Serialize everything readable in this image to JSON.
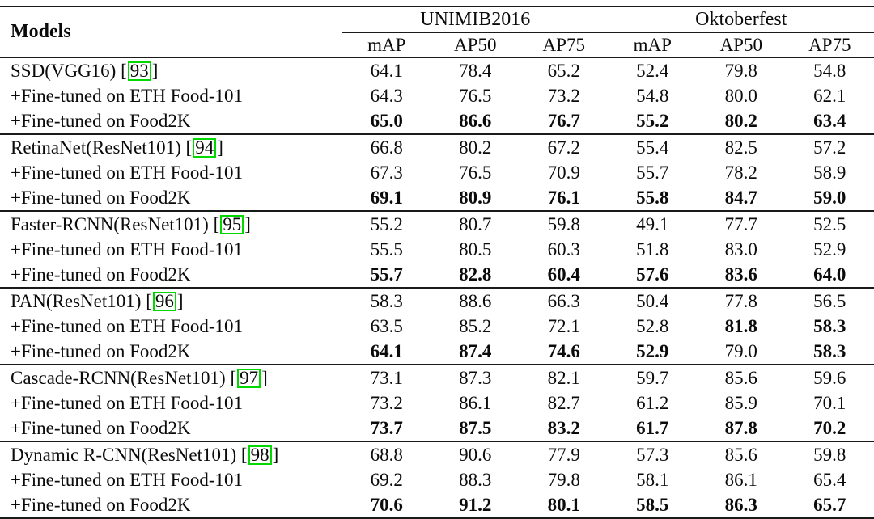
{
  "table": {
    "header": {
      "models": "Models",
      "groups": [
        {
          "label": "UNIMIB2016",
          "metrics": [
            "mAP",
            "AP50",
            "AP75"
          ]
        },
        {
          "label": "Oktoberfest",
          "metrics": [
            "mAP",
            "AP50",
            "AP75"
          ]
        }
      ]
    },
    "link_box_color": "#00d800",
    "sections": [
      {
        "rows": [
          {
            "model": "SSD(VGG16)",
            "cite": "93",
            "values": [
              "64.1",
              "78.4",
              "65.2",
              "52.4",
              "79.8",
              "54.8"
            ],
            "bold": [
              0,
              0,
              0,
              0,
              0,
              0
            ]
          },
          {
            "model": "+Fine-tuned on ETH Food-101",
            "cite": null,
            "values": [
              "64.3",
              "76.5",
              "73.2",
              "54.8",
              "80.0",
              "62.1"
            ],
            "bold": [
              0,
              0,
              0,
              0,
              0,
              0
            ]
          },
          {
            "model": "+Fine-tuned on Food2K",
            "cite": null,
            "values": [
              "65.0",
              "86.6",
              "76.7",
              "55.2",
              "80.2",
              "63.4"
            ],
            "bold": [
              1,
              1,
              1,
              1,
              1,
              1
            ]
          }
        ]
      },
      {
        "rows": [
          {
            "model": "RetinaNet(ResNet101)",
            "cite": "94",
            "values": [
              "66.8",
              "80.2",
              "67.2",
              "55.4",
              "82.5",
              "57.2"
            ],
            "bold": [
              0,
              0,
              0,
              0,
              0,
              0
            ]
          },
          {
            "model": "+Fine-tuned on ETH Food-101",
            "cite": null,
            "values": [
              "67.3",
              "76.5",
              "70.9",
              "55.7",
              "78.2",
              "58.9"
            ],
            "bold": [
              0,
              0,
              0,
              0,
              0,
              0
            ]
          },
          {
            "model": "+Fine-tuned on Food2K",
            "cite": null,
            "values": [
              "69.1",
              "80.9",
              "76.1",
              "55.8",
              "84.7",
              "59.0"
            ],
            "bold": [
              1,
              1,
              1,
              1,
              1,
              1
            ]
          }
        ]
      },
      {
        "rows": [
          {
            "model": "Faster-RCNN(ResNet101)",
            "cite": "95",
            "values": [
              "55.2",
              "80.7",
              "59.8",
              "49.1",
              "77.7",
              "52.5"
            ],
            "bold": [
              0,
              0,
              0,
              0,
              0,
              0
            ]
          },
          {
            "model": "+Fine-tuned on ETH Food-101",
            "cite": null,
            "values": [
              "55.5",
              "80.5",
              "60.3",
              "51.8",
              "83.0",
              "52.9"
            ],
            "bold": [
              0,
              0,
              0,
              0,
              0,
              0
            ]
          },
          {
            "model": "+Fine-tuned on Food2K",
            "cite": null,
            "values": [
              "55.7",
              "82.8",
              "60.4",
              "57.6",
              "83.6",
              "64.0"
            ],
            "bold": [
              1,
              1,
              1,
              1,
              1,
              1
            ]
          }
        ]
      },
      {
        "rows": [
          {
            "model": "PAN(ResNet101)",
            "cite": "96",
            "values": [
              "58.3",
              "88.6",
              "66.3",
              "50.4",
              "77.8",
              "56.5"
            ],
            "bold": [
              0,
              0,
              0,
              0,
              0,
              0
            ]
          },
          {
            "model": "+Fine-tuned on ETH Food-101",
            "cite": null,
            "values": [
              "63.5",
              "85.2",
              "72.1",
              "52.8",
              "81.8",
              "58.3"
            ],
            "bold": [
              0,
              0,
              0,
              0,
              1,
              1
            ]
          },
          {
            "model": "+Fine-tuned on Food2K",
            "cite": null,
            "values": [
              "64.1",
              "87.4",
              "74.6",
              "52.9",
              "79.0",
              "58.3"
            ],
            "bold": [
              1,
              1,
              1,
              1,
              0,
              1
            ]
          }
        ]
      },
      {
        "rows": [
          {
            "model": "Cascade-RCNN(ResNet101)",
            "cite": "97",
            "values": [
              "73.1",
              "87.3",
              "82.1",
              "59.7",
              "85.6",
              "59.6"
            ],
            "bold": [
              0,
              0,
              0,
              0,
              0,
              0
            ]
          },
          {
            "model": "+Fine-tuned on ETH Food-101",
            "cite": null,
            "values": [
              "73.2",
              "86.1",
              "82.7",
              "61.2",
              "85.9",
              "70.1"
            ],
            "bold": [
              0,
              0,
              0,
              0,
              0,
              0
            ]
          },
          {
            "model": "+Fine-tuned on Food2K",
            "cite": null,
            "values": [
              "73.7",
              "87.5",
              "83.2",
              "61.7",
              "87.8",
              "70.2"
            ],
            "bold": [
              1,
              1,
              1,
              1,
              1,
              1
            ]
          }
        ]
      },
      {
        "rows": [
          {
            "model": "Dynamic R-CNN(ResNet101)",
            "cite": "98",
            "values": [
              "68.8",
              "90.6",
              "77.9",
              "57.3",
              "85.6",
              "59.8"
            ],
            "bold": [
              0,
              0,
              0,
              0,
              0,
              0
            ]
          },
          {
            "model": "+Fine-tuned on ETH Food-101",
            "cite": null,
            "values": [
              "69.2",
              "88.3",
              "79.8",
              "58.1",
              "86.1",
              "65.4"
            ],
            "bold": [
              0,
              0,
              0,
              0,
              0,
              0
            ]
          },
          {
            "model": "+Fine-tuned on Food2K",
            "cite": null,
            "values": [
              "70.6",
              "91.2",
              "80.1",
              "58.5",
              "86.3",
              "65.7"
            ],
            "bold": [
              1,
              1,
              1,
              1,
              1,
              1
            ]
          }
        ]
      }
    ]
  }
}
